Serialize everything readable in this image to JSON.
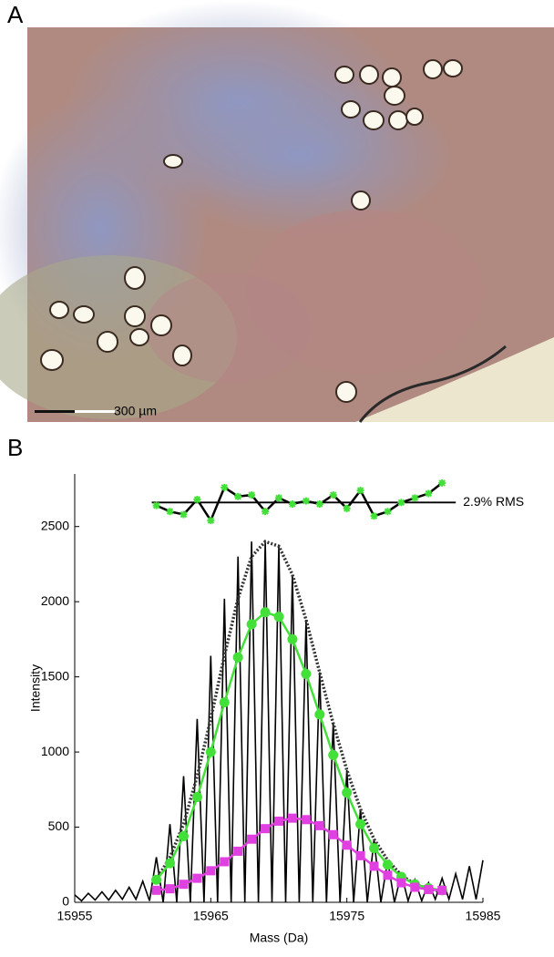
{
  "panel_a": {
    "label": "A",
    "scale_bar": "300 µm"
  },
  "chart_data": {
    "type": "line",
    "panel_label": "B",
    "x_label": "Mass (Da)",
    "y_label": "Intensity",
    "xlim": [
      15955,
      15985
    ],
    "xticks": [
      15955,
      15965,
      15975,
      15985
    ],
    "ylim": [
      0,
      2850
    ],
    "yticks": [
      0,
      500,
      1000,
      1500,
      2000,
      2500
    ],
    "annotation": "2.9% RMS",
    "rms_line": 2660,
    "series": [
      {
        "color": "#000000",
        "style": "solid",
        "marker": "none",
        "x": [
          15955,
          15955.5,
          15956,
          15956.5,
          15957,
          15957.5,
          15958,
          15958.5,
          15959,
          15959.5,
          15960,
          15960.5,
          15961,
          15961.5,
          15962,
          15962.5,
          15963,
          15963.5,
          15964,
          15964.5,
          15965,
          15965.5,
          15966,
          15966.5,
          15967,
          15967.5,
          15968,
          15968.5,
          15969,
          15969.5,
          15970,
          15970.5,
          15971,
          15971.5,
          15972,
          15972.5,
          15973,
          15973.5,
          15974,
          15974.5,
          15975,
          15975.5,
          15976,
          15976.5,
          15977,
          15977.5,
          15978,
          15978.5,
          15979,
          15979.5,
          15980,
          15980.5,
          15981,
          15981.5,
          15982,
          15982.5,
          15983,
          15983.5,
          15984,
          15984.5,
          15985
        ],
        "values": [
          50,
          10,
          60,
          15,
          70,
          15,
          80,
          20,
          100,
          20,
          140,
          10,
          300,
          0,
          520,
          0,
          840,
          0,
          1220,
          0,
          1640,
          0,
          2020,
          0,
          2300,
          0,
          2400,
          0,
          2400,
          0,
          2370,
          0,
          2180,
          0,
          1880,
          0,
          1530,
          0,
          1190,
          0,
          880,
          0,
          620,
          0,
          420,
          0,
          280,
          0,
          190,
          10,
          150,
          10,
          130,
          20,
          160,
          20,
          190,
          20,
          240,
          20,
          280
        ]
      },
      {
        "color": "#333333",
        "style": "dotted",
        "marker": "none",
        "x": [
          15961,
          15962,
          15963,
          15964,
          15965,
          15966,
          15967,
          15968,
          15969,
          15970,
          15971,
          15972,
          15973,
          15974,
          15975,
          15976,
          15977,
          15978,
          15979,
          15980,
          15981,
          15982
        ],
        "values": [
          150,
          300,
          520,
          840,
          1220,
          1640,
          2020,
          2300,
          2400,
          2370,
          2180,
          1880,
          1530,
          1190,
          880,
          620,
          420,
          280,
          180,
          120,
          90,
          70
        ]
      },
      {
        "color": "#44e03a",
        "style": "solid",
        "marker": "circle",
        "x": [
          15961,
          15962,
          15963,
          15964,
          15965,
          15966,
          15967,
          15968,
          15969,
          15970,
          15971,
          15972,
          15973,
          15974,
          15975,
          15976,
          15977,
          15978,
          15979,
          15980,
          15981,
          15982
        ],
        "values": [
          150,
          260,
          440,
          700,
          1000,
          1330,
          1630,
          1850,
          1930,
          1900,
          1750,
          1520,
          1250,
          980,
          730,
          520,
          360,
          250,
          170,
          120,
          95,
          80
        ]
      },
      {
        "color": "#e040e0",
        "style": "solid",
        "marker": "square",
        "x": [
          15961,
          15962,
          15963,
          15964,
          15965,
          15966,
          15967,
          15968,
          15969,
          15970,
          15971,
          15972,
          15973,
          15974,
          15975,
          15976,
          15977,
          15978,
          15979,
          15980,
          15981,
          15982
        ],
        "values": [
          80,
          90,
          120,
          160,
          210,
          270,
          340,
          420,
          490,
          540,
          560,
          550,
          510,
          450,
          380,
          310,
          240,
          180,
          130,
          100,
          85,
          80
        ]
      },
      {
        "color": "#000000",
        "style": "solid",
        "marker": "star",
        "marker_color": "#44e03a",
        "x": [
          15961,
          15962,
          15963,
          15964,
          15965,
          15966,
          15967,
          15968,
          15969,
          15970,
          15971,
          15972,
          15973,
          15974,
          15975,
          15976,
          15977,
          15978,
          15979,
          15980,
          15981,
          15982
        ],
        "values": [
          2640,
          2600,
          2580,
          2680,
          2540,
          2760,
          2700,
          2710,
          2600,
          2690,
          2650,
          2670,
          2650,
          2710,
          2620,
          2740,
          2570,
          2600,
          2660,
          2690,
          2720,
          2790
        ]
      }
    ]
  }
}
